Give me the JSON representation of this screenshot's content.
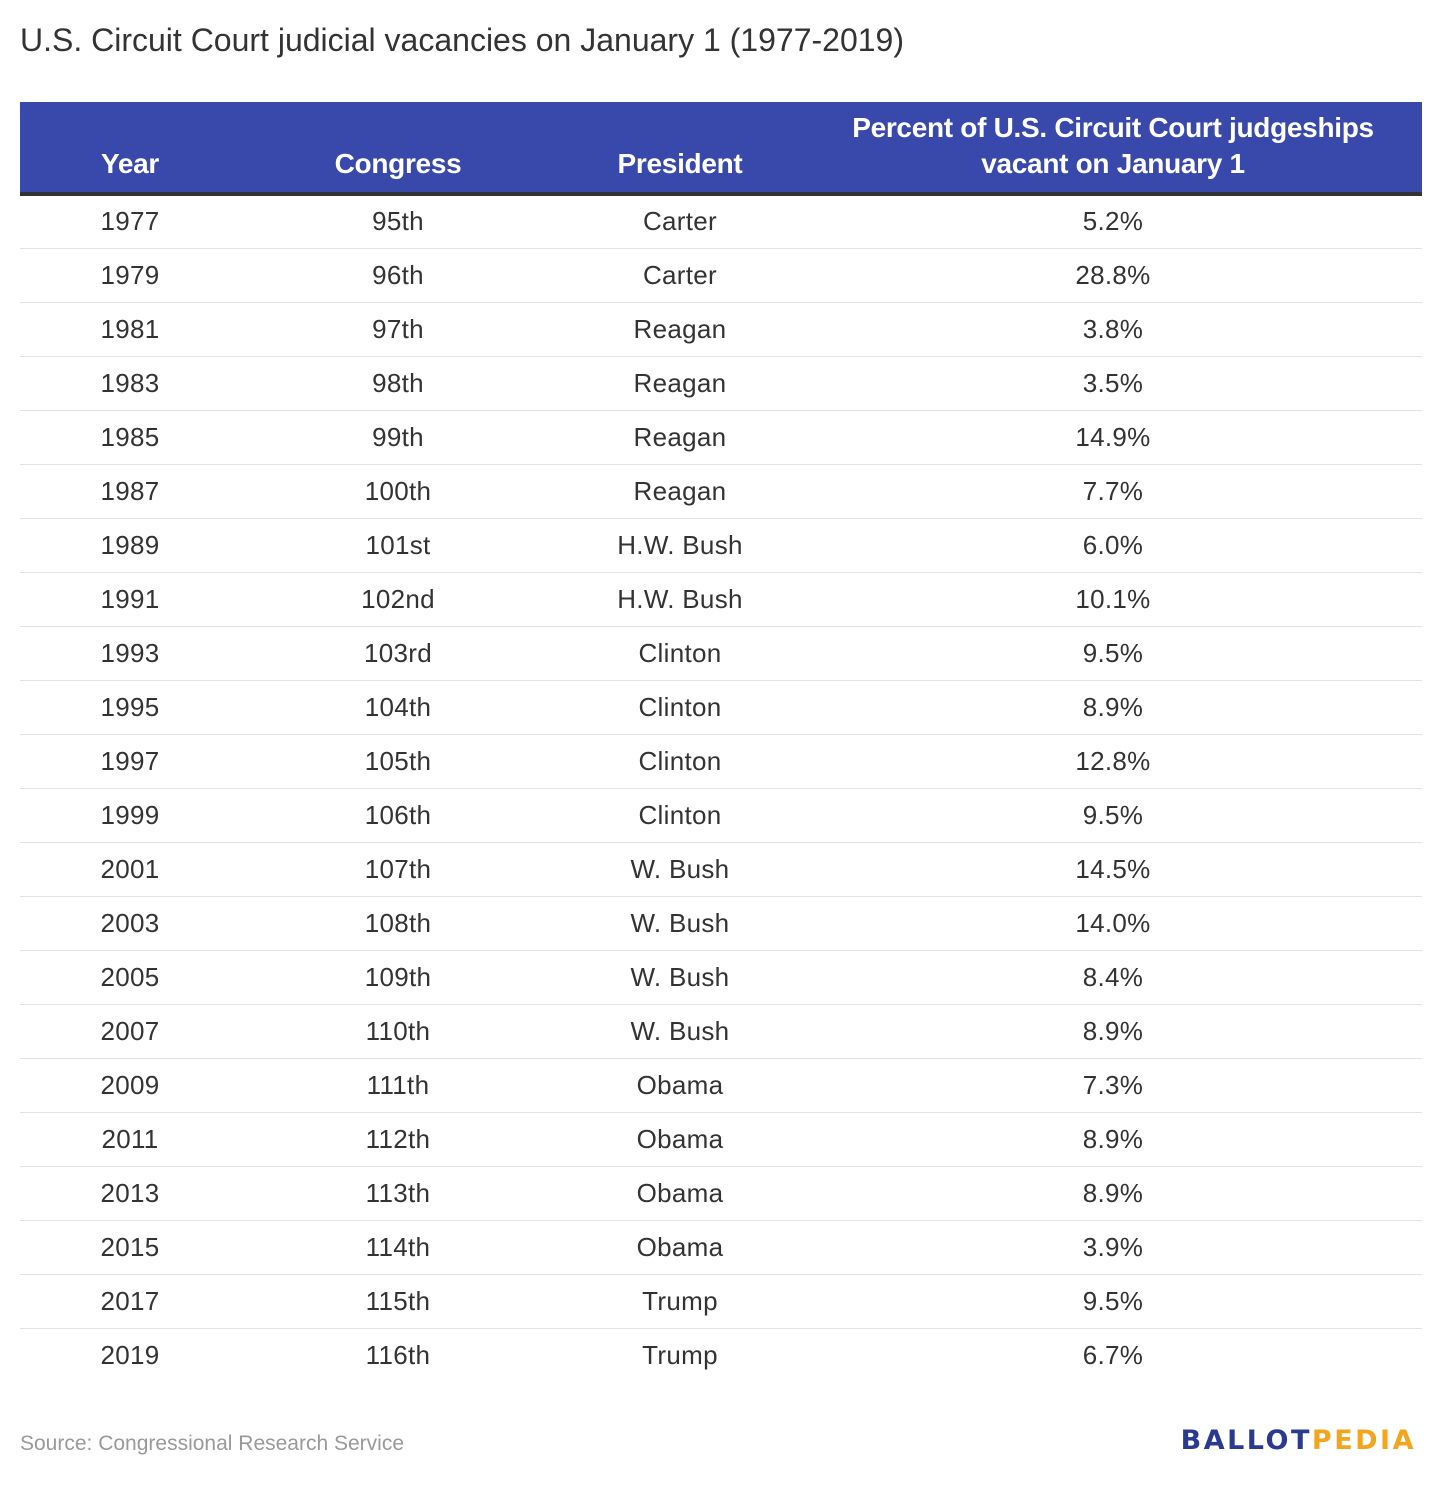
{
  "title": "U.S. Circuit Court judicial vacancies on January 1 (1977-2019)",
  "source": "Source: Congressional Research Service",
  "logo": {
    "part1": "BALLOT",
    "part2": "PEDIA"
  },
  "colors": {
    "header_bg": "#3949ab",
    "header_text": "#ffffff",
    "logo_primary": "#2a3a8f",
    "logo_accent": "#f2a51d"
  },
  "chart_data": {
    "type": "table",
    "title": "U.S. Circuit Court judicial vacancies on January 1 (1977-2019)",
    "columns": [
      "Year",
      "Congress",
      "President",
      "Percent of U.S. Circuit Court judgeships vacant on January 1"
    ],
    "rows": [
      [
        "1977",
        "95th",
        "Carter",
        "5.2%"
      ],
      [
        "1979",
        "96th",
        "Carter",
        "28.8%"
      ],
      [
        "1981",
        "97th",
        "Reagan",
        "3.8%"
      ],
      [
        "1983",
        "98th",
        "Reagan",
        "3.5%"
      ],
      [
        "1985",
        "99th",
        "Reagan",
        "14.9%"
      ],
      [
        "1987",
        "100th",
        "Reagan",
        "7.7%"
      ],
      [
        "1989",
        "101st",
        "H.W. Bush",
        "6.0%"
      ],
      [
        "1991",
        "102nd",
        "H.W. Bush",
        "10.1%"
      ],
      [
        "1993",
        "103rd",
        "Clinton",
        "9.5%"
      ],
      [
        "1995",
        "104th",
        "Clinton",
        "8.9%"
      ],
      [
        "1997",
        "105th",
        "Clinton",
        "12.8%"
      ],
      [
        "1999",
        "106th",
        "Clinton",
        "9.5%"
      ],
      [
        "2001",
        "107th",
        "W. Bush",
        "14.5%"
      ],
      [
        "2003",
        "108th",
        "W. Bush",
        "14.0%"
      ],
      [
        "2005",
        "109th",
        "W. Bush",
        "8.4%"
      ],
      [
        "2007",
        "110th",
        "W. Bush",
        "8.9%"
      ],
      [
        "2009",
        "111th",
        "Obama",
        "7.3%"
      ],
      [
        "2011",
        "112th",
        "Obama",
        "8.9%"
      ],
      [
        "2013",
        "113th",
        "Obama",
        "8.9%"
      ],
      [
        "2015",
        "114th",
        "Obama",
        "3.9%"
      ],
      [
        "2017",
        "115th",
        "Trump",
        "9.5%"
      ],
      [
        "2019",
        "116th",
        "Trump",
        "6.7%"
      ]
    ]
  }
}
